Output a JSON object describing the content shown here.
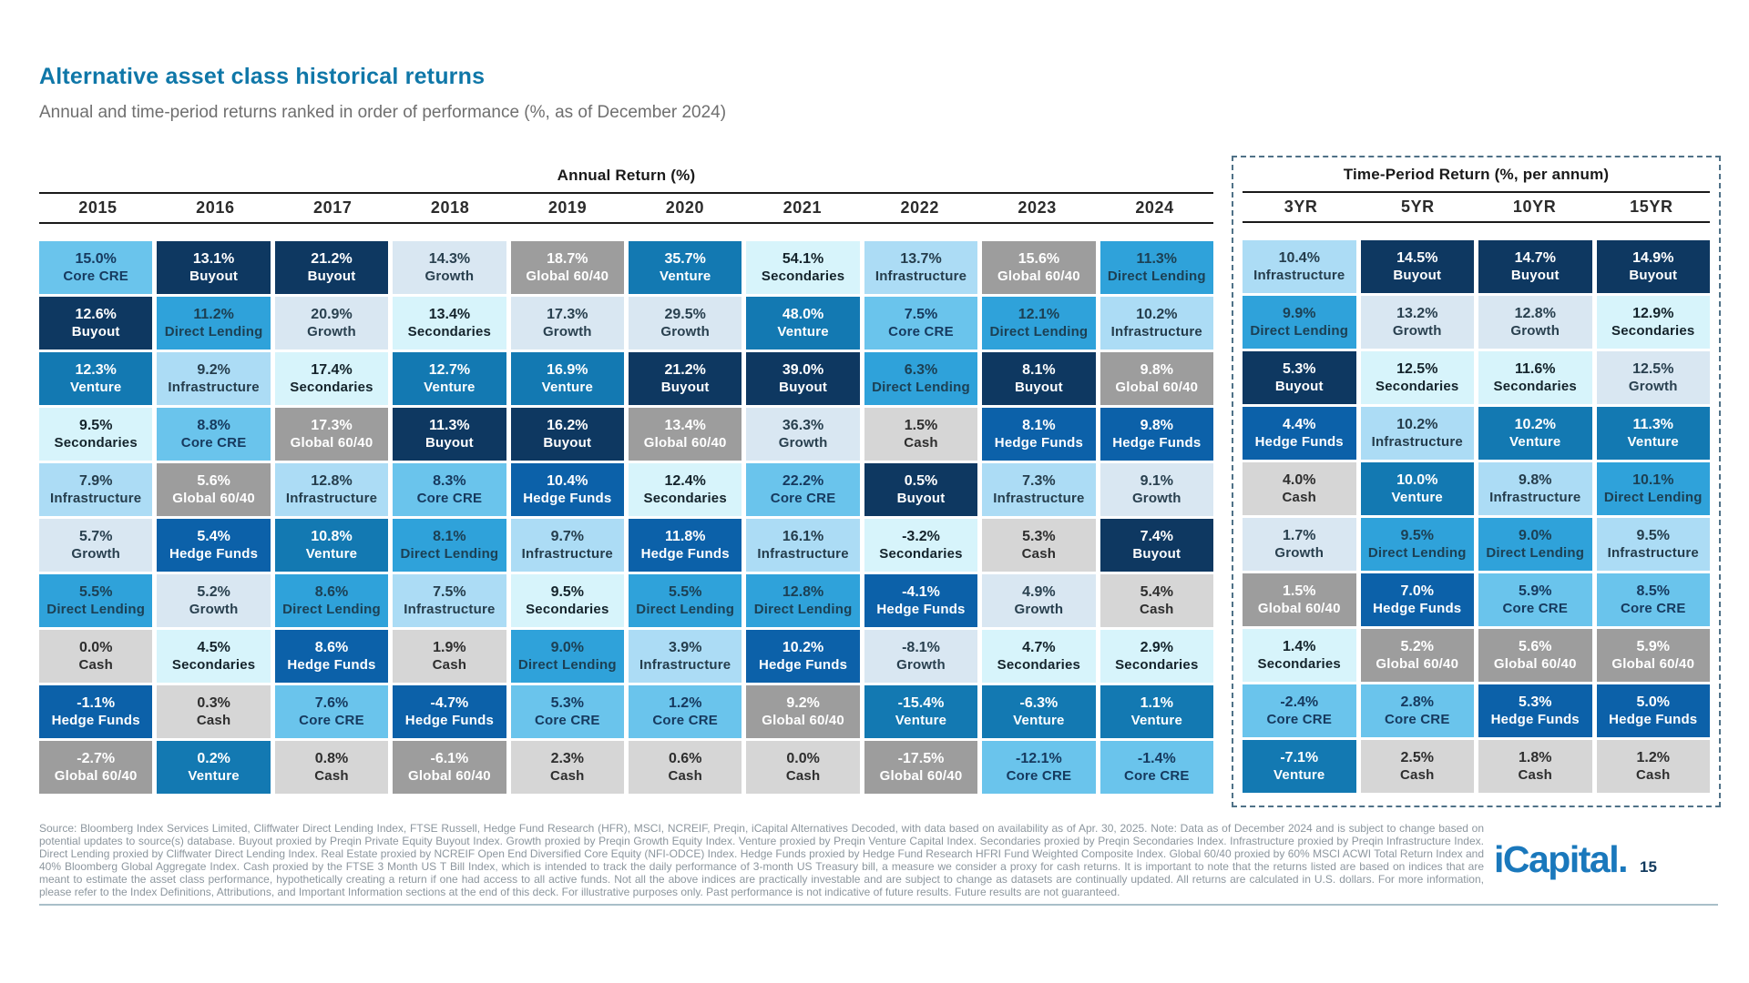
{
  "page": {
    "title": "Alternative asset class historical returns",
    "subtitle": "Annual and time-period returns ranked in order of performance (%, as of December 2024)",
    "logo_text": "iCapital.",
    "page_number": "15",
    "footer": "Source: Bloomberg Index Services Limited, Cliffwater Direct Lending Index, FTSE Russell, Hedge Fund Research (HFR), MSCI, NCREIF, Preqin, iCapital Alternatives Decoded, with data based on availability as of Apr. 30, 2025. Note: Data as of December 2024 and is subject to change based on potential updates to source(s) database. Buyout proxied by Preqin Private Equity Buyout Index. Growth proxied by Preqin Growth Equity Index. Venture proxied by Preqin Venture Capital Index. Secondaries proxied by Preqin Secondaries Index. Infrastructure proxied by Preqin Infrastructure Index. Direct Lending proxied by Cliffwater Direct Lending Index. Real Estate proxied by NCREIF Open End Diversified Core Equity (NFI-ODCE) Index. Hedge Funds proxied by Hedge Fund Research HFRI Fund Weighted Composite Index. Global 60/40 proxied by 60% MSCI ACWI Total Return Index and 40% Bloomberg Global Aggregate Index. Cash proxied by the FTSE 3 Month US T Bill Index, which is intended to track the daily performance of 3-month US Treasury bill, a measure we consider a proxy for cash returns. It is important to note that the returns listed are based on indices that are meant to estimate the asset class performance, hypothetically creating a return if one had access to all active funds. Not all the above indices are practically investable and are subject to change as datasets are continually updated. All returns are calculated in U.S. dollars. For more information, please refer to the Index Definitions, Attributions, and Important Information sections at the end of this deck. For illustrative purposes only. Past performance is not indicative of future results. Future results are not guaranteed."
  },
  "palette": {
    "core-cre": {
      "bg": "#6AC4EC",
      "fg": "#16395E"
    },
    "buyout": {
      "bg": "#0E3861",
      "fg": "#FFFFFF"
    },
    "venture": {
      "bg": "#1379B2",
      "fg": "#FFFFFF"
    },
    "secondaries": {
      "bg": "#D7F4FB",
      "fg": "#14232B"
    },
    "infrastructure": {
      "bg": "#ACDCF5",
      "fg": "#253D4C"
    },
    "growth": {
      "bg": "#D9E7F2",
      "fg": "#29404F"
    },
    "direct-lending": {
      "bg": "#2FA2DA",
      "fg": "#1C4054"
    },
    "hedge-funds": {
      "bg": "#0C61A9",
      "fg": "#FFFFFF"
    },
    "global-60-40": {
      "bg": "#9D9D9D",
      "fg": "#FFFFFF"
    },
    "cash": {
      "bg": "#D6D6D6",
      "fg": "#2E2E2E"
    }
  },
  "accents": {
    "title": "#0F77A8",
    "dashed_border": "#4F7187",
    "footer_divider": "#A9BFC9",
    "logo": "#1A78BC",
    "header_line": "#1A1A1A"
  },
  "chart_data": {
    "type": "table",
    "title": "Alternative asset class historical returns",
    "subtitle": "Annual and time-period returns ranked in order of performance (%, as of December 2024)",
    "sections": [
      {
        "title": "Annual Return (%)",
        "columns": [
          {
            "label": "2015",
            "cells": [
              {
                "value": "15.0%",
                "asset": "Core CRE"
              },
              {
                "value": "12.6%",
                "asset": "Buyout"
              },
              {
                "value": "12.3%",
                "asset": "Venture"
              },
              {
                "value": "9.5%",
                "asset": "Secondaries"
              },
              {
                "value": "7.9%",
                "asset": "Infrastructure"
              },
              {
                "value": "5.7%",
                "asset": "Growth"
              },
              {
                "value": "5.5%",
                "asset": "Direct Lending"
              },
              {
                "value": "0.0%",
                "asset": "Cash"
              },
              {
                "value": "-1.1%",
                "asset": "Hedge Funds"
              },
              {
                "value": "-2.7%",
                "asset": "Global 60/40"
              }
            ]
          },
          {
            "label": "2016",
            "cells": [
              {
                "value": "13.1%",
                "asset": "Buyout"
              },
              {
                "value": "11.2%",
                "asset": "Direct Lending"
              },
              {
                "value": "9.2%",
                "asset": "Infrastructure"
              },
              {
                "value": "8.8%",
                "asset": "Core CRE"
              },
              {
                "value": "5.6%",
                "asset": "Global 60/40"
              },
              {
                "value": "5.4%",
                "asset": "Hedge Funds"
              },
              {
                "value": "5.2%",
                "asset": "Growth"
              },
              {
                "value": "4.5%",
                "asset": "Secondaries"
              },
              {
                "value": "0.3%",
                "asset": "Cash"
              },
              {
                "value": "0.2%",
                "asset": "Venture"
              }
            ]
          },
          {
            "label": "2017",
            "cells": [
              {
                "value": "21.2%",
                "asset": "Buyout"
              },
              {
                "value": "20.9%",
                "asset": "Growth"
              },
              {
                "value": "17.4%",
                "asset": "Secondaries"
              },
              {
                "value": "17.3%",
                "asset": "Global 60/40"
              },
              {
                "value": "12.8%",
                "asset": "Infrastructure"
              },
              {
                "value": "10.8%",
                "asset": "Venture"
              },
              {
                "value": "8.6%",
                "asset": "Direct Lending"
              },
              {
                "value": "8.6%",
                "asset": "Hedge Funds"
              },
              {
                "value": "7.6%",
                "asset": "Core CRE"
              },
              {
                "value": "0.8%",
                "asset": "Cash"
              }
            ]
          },
          {
            "label": "2018",
            "cells": [
              {
                "value": "14.3%",
                "asset": "Growth"
              },
              {
                "value": "13.4%",
                "asset": "Secondaries"
              },
              {
                "value": "12.7%",
                "asset": "Venture"
              },
              {
                "value": "11.3%",
                "asset": "Buyout"
              },
              {
                "value": "8.3%",
                "asset": "Core CRE"
              },
              {
                "value": "8.1%",
                "asset": "Direct Lending"
              },
              {
                "value": "7.5%",
                "asset": "Infrastructure"
              },
              {
                "value": "1.9%",
                "asset": "Cash"
              },
              {
                "value": "-4.7%",
                "asset": "Hedge Funds"
              },
              {
                "value": "-6.1%",
                "asset": "Global 60/40"
              }
            ]
          },
          {
            "label": "2019",
            "cells": [
              {
                "value": "18.7%",
                "asset": "Global 60/40"
              },
              {
                "value": "17.3%",
                "asset": "Growth"
              },
              {
                "value": "16.9%",
                "asset": "Venture"
              },
              {
                "value": "16.2%",
                "asset": "Buyout"
              },
              {
                "value": "10.4%",
                "asset": "Hedge Funds"
              },
              {
                "value": "9.7%",
                "asset": "Infrastructure"
              },
              {
                "value": "9.5%",
                "asset": "Secondaries"
              },
              {
                "value": "9.0%",
                "asset": "Direct Lending"
              },
              {
                "value": "5.3%",
                "asset": "Core CRE"
              },
              {
                "value": "2.3%",
                "asset": "Cash"
              }
            ]
          },
          {
            "label": "2020",
            "cells": [
              {
                "value": "35.7%",
                "asset": "Venture"
              },
              {
                "value": "29.5%",
                "asset": "Growth"
              },
              {
                "value": "21.2%",
                "asset": "Buyout"
              },
              {
                "value": "13.4%",
                "asset": "Global 60/40"
              },
              {
                "value": "12.4%",
                "asset": "Secondaries"
              },
              {
                "value": "11.8%",
                "asset": "Hedge Funds"
              },
              {
                "value": "5.5%",
                "asset": "Direct Lending"
              },
              {
                "value": "3.9%",
                "asset": "Infrastructure"
              },
              {
                "value": "1.2%",
                "asset": "Core CRE"
              },
              {
                "value": "0.6%",
                "asset": "Cash"
              }
            ]
          },
          {
            "label": "2021",
            "cells": [
              {
                "value": "54.1%",
                "asset": "Secondaries"
              },
              {
                "value": "48.0%",
                "asset": "Venture"
              },
              {
                "value": "39.0%",
                "asset": "Buyout"
              },
              {
                "value": "36.3%",
                "asset": "Growth"
              },
              {
                "value": "22.2%",
                "asset": "Core CRE"
              },
              {
                "value": "16.1%",
                "asset": "Infrastructure"
              },
              {
                "value": "12.8%",
                "asset": "Direct Lending"
              },
              {
                "value": "10.2%",
                "asset": "Hedge Funds"
              },
              {
                "value": "9.2%",
                "asset": "Global 60/40"
              },
              {
                "value": "0.0%",
                "asset": "Cash"
              }
            ]
          },
          {
            "label": "2022",
            "cells": [
              {
                "value": "13.7%",
                "asset": "Infrastructure"
              },
              {
                "value": "7.5%",
                "asset": "Core CRE"
              },
              {
                "value": "6.3%",
                "asset": "Direct Lending"
              },
              {
                "value": "1.5%",
                "asset": "Cash"
              },
              {
                "value": "0.5%",
                "asset": "Buyout"
              },
              {
                "value": "-3.2%",
                "asset": "Secondaries"
              },
              {
                "value": "-4.1%",
                "asset": "Hedge Funds"
              },
              {
                "value": "-8.1%",
                "asset": "Growth"
              },
              {
                "value": "-15.4%",
                "asset": "Venture"
              },
              {
                "value": "-17.5%",
                "asset": "Global 60/40"
              }
            ]
          },
          {
            "label": "2023",
            "cells": [
              {
                "value": "15.6%",
                "asset": "Global 60/40"
              },
              {
                "value": "12.1%",
                "asset": "Direct Lending"
              },
              {
                "value": "8.1%",
                "asset": "Buyout"
              },
              {
                "value": "8.1%",
                "asset": "Hedge Funds"
              },
              {
                "value": "7.3%",
                "asset": "Infrastructure"
              },
              {
                "value": "5.3%",
                "asset": "Cash"
              },
              {
                "value": "4.9%",
                "asset": "Growth"
              },
              {
                "value": "4.7%",
                "asset": "Secondaries"
              },
              {
                "value": "-6.3%",
                "asset": "Venture"
              },
              {
                "value": "-12.1%",
                "asset": "Core CRE"
              }
            ]
          },
          {
            "label": "2024",
            "cells": [
              {
                "value": "11.3%",
                "asset": "Direct Lending"
              },
              {
                "value": "10.2%",
                "asset": "Infrastructure"
              },
              {
                "value": "9.8%",
                "asset": "Global 60/40"
              },
              {
                "value": "9.8%",
                "asset": "Hedge Funds"
              },
              {
                "value": "9.1%",
                "asset": "Growth"
              },
              {
                "value": "7.4%",
                "asset": "Buyout"
              },
              {
                "value": "5.4%",
                "asset": "Cash"
              },
              {
                "value": "2.9%",
                "asset": "Secondaries"
              },
              {
                "value": "1.1%",
                "asset": "Venture"
              },
              {
                "value": "-1.4%",
                "asset": "Core CRE"
              }
            ]
          }
        ]
      },
      {
        "title": "Time-Period Return (%, per annum)",
        "columns": [
          {
            "label": "3YR",
            "cells": [
              {
                "value": "10.4%",
                "asset": "Infrastructure"
              },
              {
                "value": "9.9%",
                "asset": "Direct Lending"
              },
              {
                "value": "5.3%",
                "asset": "Buyout"
              },
              {
                "value": "4.4%",
                "asset": "Hedge Funds"
              },
              {
                "value": "4.0%",
                "asset": "Cash"
              },
              {
                "value": "1.7%",
                "asset": "Growth"
              },
              {
                "value": "1.5%",
                "asset": "Global 60/40"
              },
              {
                "value": "1.4%",
                "asset": "Secondaries"
              },
              {
                "value": "-2.4%",
                "asset": "Core CRE"
              },
              {
                "value": "-7.1%",
                "asset": "Venture"
              }
            ]
          },
          {
            "label": "5YR",
            "cells": [
              {
                "value": "14.5%",
                "asset": "Buyout"
              },
              {
                "value": "13.2%",
                "asset": "Growth"
              },
              {
                "value": "12.5%",
                "asset": "Secondaries"
              },
              {
                "value": "10.2%",
                "asset": "Infrastructure"
              },
              {
                "value": "10.0%",
                "asset": "Venture"
              },
              {
                "value": "9.5%",
                "asset": "Direct Lending"
              },
              {
                "value": "7.0%",
                "asset": "Hedge Funds"
              },
              {
                "value": "5.2%",
                "asset": "Global 60/40"
              },
              {
                "value": "2.8%",
                "asset": "Core CRE"
              },
              {
                "value": "2.5%",
                "asset": "Cash"
              }
            ]
          },
          {
            "label": "10YR",
            "cells": [
              {
                "value": "14.7%",
                "asset": "Buyout"
              },
              {
                "value": "12.8%",
                "asset": "Growth"
              },
              {
                "value": "11.6%",
                "asset": "Secondaries"
              },
              {
                "value": "10.2%",
                "asset": "Venture"
              },
              {
                "value": "9.8%",
                "asset": "Infrastructure"
              },
              {
                "value": "9.0%",
                "asset": "Direct Lending"
              },
              {
                "value": "5.9%",
                "asset": "Core CRE"
              },
              {
                "value": "5.6%",
                "asset": "Global 60/40"
              },
              {
                "value": "5.3%",
                "asset": "Hedge Funds"
              },
              {
                "value": "1.8%",
                "asset": "Cash"
              }
            ]
          },
          {
            "label": "15YR",
            "cells": [
              {
                "value": "14.9%",
                "asset": "Buyout"
              },
              {
                "value": "12.9%",
                "asset": "Secondaries"
              },
              {
                "value": "12.5%",
                "asset": "Growth"
              },
              {
                "value": "11.3%",
                "asset": "Venture"
              },
              {
                "value": "10.1%",
                "asset": "Direct Lending"
              },
              {
                "value": "9.5%",
                "asset": "Infrastructure"
              },
              {
                "value": "8.5%",
                "asset": "Core CRE"
              },
              {
                "value": "5.9%",
                "asset": "Global 60/40"
              },
              {
                "value": "5.0%",
                "asset": "Hedge Funds"
              },
              {
                "value": "1.2%",
                "asset": "Cash"
              }
            ]
          }
        ]
      }
    ]
  }
}
